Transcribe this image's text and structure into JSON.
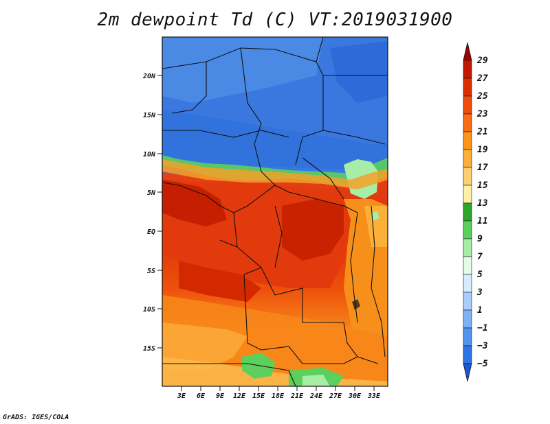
{
  "title": "2m dewpoint Td (C) VT:2019031900",
  "credit": "GrADS: IGES/COLA",
  "map": {
    "lon_range": [
      0,
      35
    ],
    "lat_range": [
      -20,
      25
    ],
    "lat_ticks": [
      "20N",
      "15N",
      "10N",
      "5N",
      "EQ",
      "5S",
      "10S",
      "15S"
    ],
    "lon_ticks": [
      "3E",
      "6E",
      "9E",
      "12E",
      "15E",
      "18E",
      "21E",
      "24E",
      "27E",
      "30E",
      "33E"
    ]
  },
  "colorbar": {
    "labels": [
      "29",
      "27",
      "25",
      "23",
      "21",
      "19",
      "17",
      "15",
      "13",
      "11",
      "9",
      "7",
      "5",
      "3",
      "1",
      "−1",
      "−3",
      "−5"
    ],
    "colors": [
      "#a50000",
      "#c11a00",
      "#dd2e00",
      "#ee4c0a",
      "#f86d12",
      "#fb9418",
      "#fbb03a",
      "#fcd070",
      "#fff0a8",
      "#2ea62e",
      "#5ccf5c",
      "#a6eda6",
      "#e6fbe6",
      "#d6ecff",
      "#aacdfc",
      "#7eb2f6",
      "#5294ee",
      "#2f74e4",
      "#1c58d2"
    ]
  }
}
